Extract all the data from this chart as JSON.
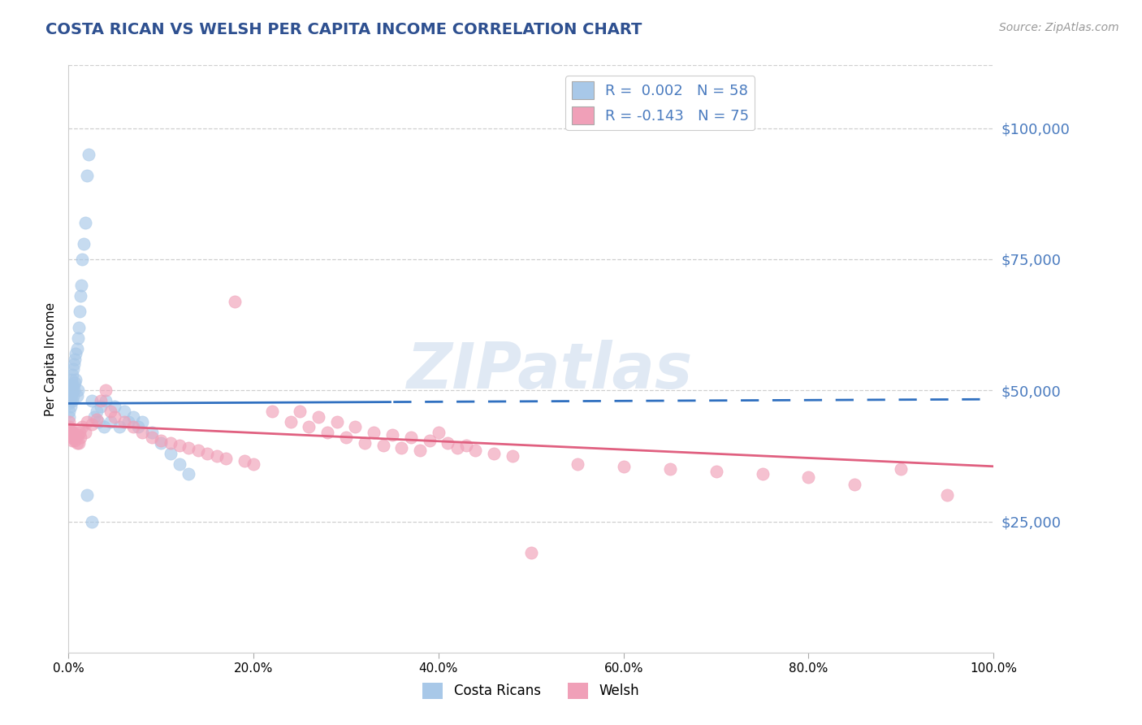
{
  "title": "COSTA RICAN VS WELSH PER CAPITA INCOME CORRELATION CHART",
  "title_color": "#2e5090",
  "source_text": "Source: ZipAtlas.com",
  "ylabel": "Per Capita Income",
  "xlim": [
    0.0,
    1.0
  ],
  "ylim": [
    0,
    112000
  ],
  "yticks": [
    0,
    25000,
    50000,
    75000,
    100000
  ],
  "ytick_labels": [
    "",
    "$25,000",
    "$50,000",
    "$75,000",
    "$100,000"
  ],
  "xtick_labels": [
    "0.0%",
    "20.0%",
    "40.0%",
    "60.0%",
    "80.0%",
    "100.0%"
  ],
  "xtick_positions": [
    0.0,
    0.2,
    0.4,
    0.6,
    0.8,
    1.0
  ],
  "blue_color": "#a8c8e8",
  "pink_color": "#f0a0b8",
  "trend_blue_color": "#3070c0",
  "trend_pink_color": "#e06080",
  "legend_label1": "R =  0.002   N = 58",
  "legend_label2": "R = -0.143   N = 75",
  "legend_label_cr": "Costa Ricans",
  "legend_label_w": "Welsh",
  "grid_color": "#bbbbbb",
  "background_color": "#ffffff",
  "tick_color": "#4a7bbf",
  "watermark_text": "ZIPatlas",
  "blue_x": [
    0.001,
    0.001,
    0.001,
    0.001,
    0.002,
    0.002,
    0.002,
    0.002,
    0.003,
    0.003,
    0.003,
    0.004,
    0.004,
    0.004,
    0.005,
    0.005,
    0.005,
    0.006,
    0.006,
    0.007,
    0.007,
    0.008,
    0.008,
    0.009,
    0.009,
    0.01,
    0.01,
    0.011,
    0.012,
    0.013,
    0.014,
    0.015,
    0.016,
    0.018,
    0.02,
    0.022,
    0.025,
    0.028,
    0.03,
    0.032,
    0.035,
    0.038,
    0.04,
    0.045,
    0.05,
    0.055,
    0.06,
    0.065,
    0.07,
    0.075,
    0.08,
    0.09,
    0.1,
    0.11,
    0.12,
    0.13,
    0.02,
    0.025
  ],
  "blue_y": [
    48000,
    47500,
    46000,
    45000,
    50000,
    49000,
    48500,
    47000,
    52000,
    51000,
    49500,
    53000,
    50000,
    48000,
    54000,
    51000,
    49000,
    55000,
    50000,
    56000,
    51500,
    57000,
    52000,
    58000,
    49000,
    60000,
    50000,
    62000,
    65000,
    68000,
    70000,
    75000,
    78000,
    82000,
    91000,
    95000,
    48000,
    45000,
    46000,
    44000,
    47000,
    43000,
    48000,
    44000,
    47000,
    43000,
    46000,
    44000,
    45000,
    43000,
    44000,
    42000,
    40000,
    38000,
    36000,
    34000,
    30000,
    25000
  ],
  "pink_x": [
    0.001,
    0.001,
    0.002,
    0.002,
    0.003,
    0.003,
    0.004,
    0.004,
    0.005,
    0.006,
    0.007,
    0.008,
    0.009,
    0.01,
    0.011,
    0.012,
    0.013,
    0.015,
    0.018,
    0.02,
    0.025,
    0.03,
    0.035,
    0.04,
    0.045,
    0.05,
    0.06,
    0.07,
    0.08,
    0.09,
    0.1,
    0.11,
    0.12,
    0.13,
    0.14,
    0.15,
    0.16,
    0.17,
    0.18,
    0.19,
    0.2,
    0.22,
    0.24,
    0.26,
    0.28,
    0.3,
    0.32,
    0.34,
    0.36,
    0.38,
    0.4,
    0.42,
    0.44,
    0.46,
    0.48,
    0.5,
    0.55,
    0.6,
    0.65,
    0.7,
    0.75,
    0.8,
    0.85,
    0.9,
    0.95,
    0.25,
    0.27,
    0.29,
    0.31,
    0.33,
    0.35,
    0.37,
    0.39,
    0.41,
    0.43
  ],
  "pink_y": [
    44000,
    43000,
    42500,
    41500,
    42000,
    41000,
    41500,
    40500,
    42000,
    41000,
    40500,
    41000,
    40000,
    41500,
    40000,
    42000,
    41000,
    43000,
    42000,
    44000,
    43500,
    44500,
    48000,
    50000,
    46000,
    45000,
    44000,
    43000,
    42000,
    41000,
    40500,
    40000,
    39500,
    39000,
    38500,
    38000,
    37500,
    37000,
    67000,
    36500,
    36000,
    46000,
    44000,
    43000,
    42000,
    41000,
    40000,
    39500,
    39000,
    38500,
    42000,
    39000,
    38500,
    38000,
    37500,
    19000,
    36000,
    35500,
    35000,
    34500,
    34000,
    33500,
    32000,
    35000,
    30000,
    46000,
    45000,
    44000,
    43000,
    42000,
    41500,
    41000,
    40500,
    40000,
    39500
  ]
}
